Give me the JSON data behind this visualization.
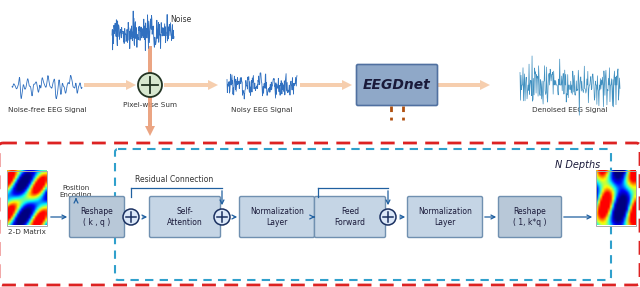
{
  "bg_color": "#ffffff",
  "arrow_color": "#f5c6a0",
  "arrow_color_dark": "#e8956d",
  "box_color_eegdnet": "#8fa8c8",
  "box_color_block": "#b8c8d8",
  "box_color_inner": "#c5d5e5",
  "red_dash_color": "#dd2222",
  "blue_dash_color": "#30a0cc",
  "signal_color": "#3070c0",
  "eegdnet_label": "EEGDnet",
  "residual_label": "Residual Connection",
  "ndepths_label": "N Depths",
  "pos_enc_label": "Position\nEncoding",
  "matrix_label": "2-D Matrix"
}
